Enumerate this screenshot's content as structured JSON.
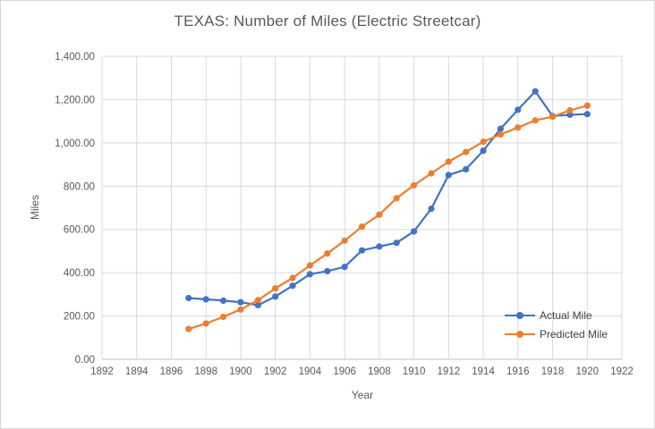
{
  "colors": {
    "actual_series": "#4472C4",
    "predicted_series": "#ED7D31",
    "gridline": "#D9D9D9",
    "axis_line": "#BFBFBF",
    "tick_text": "#595959",
    "title_text": "#595959",
    "legend_text": "#404040",
    "frame_border": "#D7D7D7",
    "background": "#FFFFFF"
  },
  "chart_data": {
    "type": "line",
    "title": "TEXAS: Number of Miles (Electric Streetcar)",
    "xlabel": "Year",
    "ylabel": "Miles",
    "xlim": [
      1892,
      1922
    ],
    "ylim": [
      0,
      1400
    ],
    "grid": true,
    "legend_position": "inside-bottom-right",
    "marker": "circle",
    "x_tick_values": [
      1892,
      1894,
      1896,
      1898,
      1900,
      1902,
      1904,
      1906,
      1908,
      1910,
      1912,
      1914,
      1916,
      1918,
      1920,
      1922
    ],
    "x_tick_labels": [
      "1892",
      "1894",
      "1896",
      "1898",
      "1900",
      "1902",
      "1904",
      "1906",
      "1908",
      "1910",
      "1912",
      "1914",
      "1916",
      "1918",
      "1920",
      "1922"
    ],
    "y_tick_values": [
      0,
      200,
      400,
      600,
      800,
      1000,
      1200,
      1400
    ],
    "y_tick_labels": [
      "0.00",
      "200.00",
      "400.00",
      "600.00",
      "800.00",
      "1,000.00",
      "1,200.00",
      "1,400.00"
    ],
    "x": [
      1897,
      1898,
      1899,
      1900,
      1901,
      1902,
      1903,
      1904,
      1905,
      1906,
      1907,
      1908,
      1909,
      1910,
      1911,
      1912,
      1913,
      1914,
      1915,
      1916,
      1917,
      1918,
      1919,
      1920
    ],
    "series": [
      {
        "name": "Actual Mile",
        "color": "#4472C4",
        "values": [
          283,
          277,
          271,
          264,
          250,
          290,
          340,
          393,
          407,
          427,
          503,
          521,
          538,
          591,
          696,
          851,
          878,
          964,
          1065,
          1153,
          1238,
          1124,
          1130,
          1133
        ]
      },
      {
        "name": "Predicted Mile",
        "color": "#ED7D31",
        "values": [
          140,
          165,
          196,
          230,
          273,
          328,
          376,
          434,
          489,
          548,
          613,
          668,
          744,
          804,
          859,
          913,
          958,
          1005,
          1039,
          1071,
          1104,
          1121,
          1150,
          1172
        ]
      }
    ]
  }
}
